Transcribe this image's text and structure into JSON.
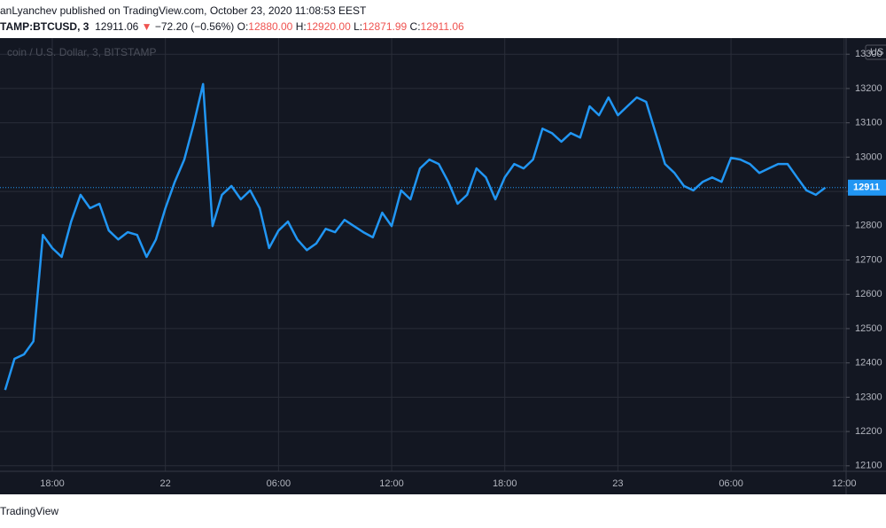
{
  "header": {
    "byline": "anLyanchev published on TradingView.com, October 23, 2020 11:08:53 EEST",
    "symbol": "TAMP:BTCUSD, 3",
    "last": "12911.06",
    "arrow": "▼",
    "change": "−72.20 (−0.56%)",
    "ohlc": [
      {
        "label": "O:",
        "value": "12880.00"
      },
      {
        "label": "H:",
        "value": "12920.00"
      },
      {
        "label": "L:",
        "value": "12871.99"
      },
      {
        "label": "C:",
        "value": "12911.06"
      }
    ]
  },
  "chart_data": {
    "type": "line",
    "watermark": "coin / U.S. Dollar, 3, BITSTAMP",
    "currency": "US",
    "categories": [
      null,
      null,
      null,
      null,
      null,
      "18:00",
      null,
      null,
      null,
      null,
      null,
      null,
      null,
      null,
      null,
      null,
      null,
      "22",
      null,
      null,
      null,
      null,
      null,
      null,
      null,
      null,
      null,
      null,
      null,
      "06:00",
      null,
      null,
      null,
      null,
      null,
      null,
      null,
      null,
      null,
      null,
      null,
      "12:00",
      null,
      null,
      null,
      null,
      null,
      null,
      null,
      null,
      null,
      null,
      null,
      "18:00",
      null,
      null,
      null,
      null,
      null,
      null,
      null,
      null,
      null,
      null,
      null,
      "23",
      null,
      null,
      null,
      null,
      null,
      null,
      null,
      null,
      null,
      null,
      null,
      "06:00",
      null,
      null,
      null,
      null,
      null,
      null,
      null,
      null,
      null,
      null,
      null,
      "12:00"
    ],
    "values": [
      12321,
      12412,
      12425,
      12463,
      12773,
      12735,
      12709,
      12812,
      12890,
      12851,
      12864,
      12786,
      12760,
      12781,
      12773,
      12709,
      12760,
      12851,
      12928,
      12993,
      13096,
      13213,
      12799,
      12890,
      12916,
      12877,
      12903,
      12851,
      12735,
      12786,
      12812,
      12760,
      12729,
      12748,
      12791,
      12781,
      12817,
      12799,
      12781,
      12766,
      12838,
      12799,
      12903,
      12877,
      12967,
      12993,
      12980,
      12928,
      12864,
      12890,
      12967,
      12941,
      12877,
      12941,
      12980,
      12967,
      12993,
      13083,
      13070,
      13045,
      13070,
      13057,
      13148,
      13122,
      13174,
      13122,
      13148,
      13174,
      13161,
      13070,
      12980,
      12954,
      12916,
      12903,
      12928,
      12941,
      12928,
      12998,
      12993,
      12980,
      12954,
      12967,
      12980,
      12980,
      12941,
      12903,
      12890,
      12911,
      null,
      null
    ],
    "color": "#2196f3",
    "ylim": [
      12084,
      13347
    ],
    "yticks": [
      12100,
      12200,
      12300,
      12400,
      12500,
      12600,
      12700,
      12800,
      12900,
      13000,
      13100,
      13200,
      13300
    ],
    "grid": true,
    "last_price": 12911.06,
    "last_price_label": "12911"
  },
  "footer": "TradingView"
}
